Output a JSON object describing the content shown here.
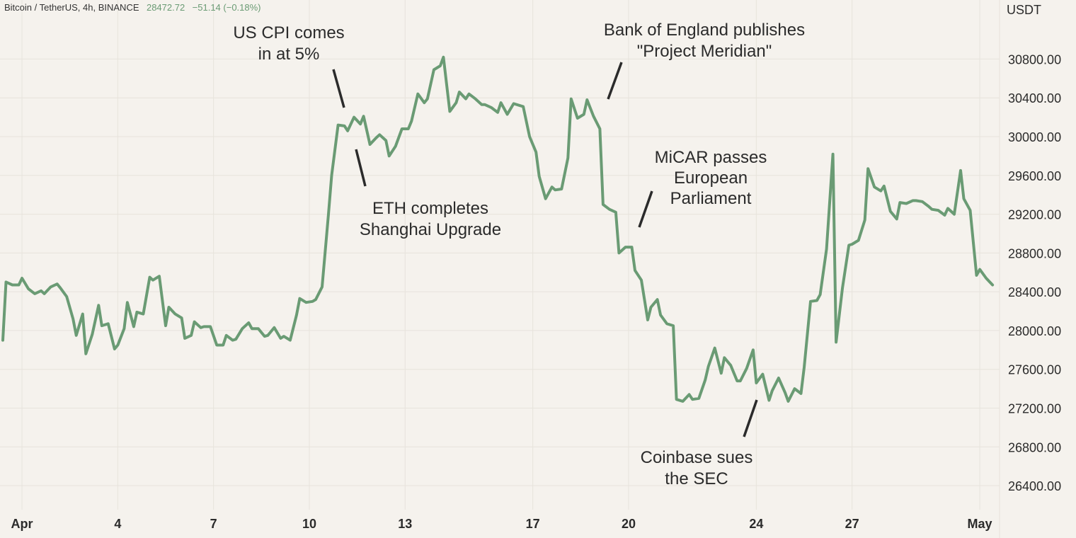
{
  "header": {
    "symbol": "Bitcoin / TetherUS, 4h, BINANCE",
    "price": "28472.72",
    "change": "−51.14 (−0.18%)"
  },
  "colors": {
    "background": "#f5f2ed",
    "line": "#6a9b74",
    "grid": "#e7e3dc",
    "text": "#2b2b2b",
    "header_change": "#6a9b74"
  },
  "chart_data": {
    "type": "line",
    "title": "Bitcoin / TetherUS, 4h, BINANCE",
    "ylabel": "USDT",
    "xlabel": "",
    "ylim": [
      26200,
      31300
    ],
    "xlim": [
      0,
      31.3
    ],
    "grid": true,
    "y_ticks": [
      26400,
      26800,
      27200,
      27600,
      28000,
      28400,
      28800,
      29200,
      29600,
      30000,
      30400,
      30800
    ],
    "y_tick_labels": [
      "26400.00",
      "26800.00",
      "27200.00",
      "27600.00",
      "28000.00",
      "28400.00",
      "28800.00",
      "29200.00",
      "29600.00",
      "30000.00",
      "30400.00",
      "30800.00"
    ],
    "x_ticks": [
      {
        "t": 0.6,
        "label": "Apr"
      },
      {
        "t": 3.6,
        "label": "4"
      },
      {
        "t": 6.6,
        "label": "7"
      },
      {
        "t": 9.6,
        "label": "10"
      },
      {
        "t": 12.6,
        "label": "13"
      },
      {
        "t": 16.6,
        "label": "17"
      },
      {
        "t": 19.6,
        "label": "20"
      },
      {
        "t": 23.6,
        "label": "24"
      },
      {
        "t": 26.6,
        "label": "27"
      },
      {
        "t": 30.6,
        "label": "May"
      }
    ],
    "series": [
      {
        "values": [
          [
            0.0,
            27900
          ],
          [
            0.1,
            28500
          ],
          [
            0.3,
            28470
          ],
          [
            0.5,
            28470
          ],
          [
            0.6,
            28540
          ],
          [
            0.8,
            28430
          ],
          [
            1.0,
            28380
          ],
          [
            1.2,
            28410
          ],
          [
            1.3,
            28380
          ],
          [
            1.5,
            28450
          ],
          [
            1.7,
            28480
          ],
          [
            1.8,
            28440
          ],
          [
            2.0,
            28350
          ],
          [
            2.2,
            28120
          ],
          [
            2.3,
            27950
          ],
          [
            2.5,
            28170
          ],
          [
            2.6,
            27760
          ],
          [
            2.8,
            27960
          ],
          [
            3.0,
            28260
          ],
          [
            3.1,
            28050
          ],
          [
            3.3,
            28070
          ],
          [
            3.5,
            27810
          ],
          [
            3.6,
            27850
          ],
          [
            3.8,
            28020
          ],
          [
            3.9,
            28290
          ],
          [
            4.1,
            28040
          ],
          [
            4.2,
            28190
          ],
          [
            4.4,
            28170
          ],
          [
            4.6,
            28550
          ],
          [
            4.7,
            28520
          ],
          [
            4.9,
            28560
          ],
          [
            5.1,
            28050
          ],
          [
            5.2,
            28240
          ],
          [
            5.4,
            28170
          ],
          [
            5.6,
            28130
          ],
          [
            5.7,
            27920
          ],
          [
            5.9,
            27950
          ],
          [
            6.0,
            28090
          ],
          [
            6.2,
            28030
          ],
          [
            6.3,
            28040
          ],
          [
            6.5,
            28040
          ],
          [
            6.7,
            27850
          ],
          [
            6.9,
            27850
          ],
          [
            7.0,
            27950
          ],
          [
            7.2,
            27900
          ],
          [
            7.3,
            27910
          ],
          [
            7.5,
            28020
          ],
          [
            7.7,
            28080
          ],
          [
            7.8,
            28020
          ],
          [
            8.0,
            28020
          ],
          [
            8.2,
            27940
          ],
          [
            8.3,
            27950
          ],
          [
            8.5,
            28030
          ],
          [
            8.7,
            27920
          ],
          [
            8.8,
            27940
          ],
          [
            9.0,
            27900
          ],
          [
            9.2,
            28160
          ],
          [
            9.3,
            28330
          ],
          [
            9.5,
            28290
          ],
          [
            9.7,
            28300
          ],
          [
            9.8,
            28320
          ],
          [
            10.0,
            28450
          ],
          [
            10.2,
            29200
          ],
          [
            10.3,
            29600
          ],
          [
            10.5,
            30120
          ],
          [
            10.7,
            30110
          ],
          [
            10.8,
            30060
          ],
          [
            11.0,
            30200
          ],
          [
            11.2,
            30130
          ],
          [
            11.3,
            30210
          ],
          [
            11.5,
            29920
          ],
          [
            11.7,
            29990
          ],
          [
            11.8,
            30020
          ],
          [
            12.0,
            29960
          ],
          [
            12.1,
            29800
          ],
          [
            12.3,
            29900
          ],
          [
            12.5,
            30080
          ],
          [
            12.7,
            30080
          ],
          [
            12.8,
            30160
          ],
          [
            13.0,
            30440
          ],
          [
            13.2,
            30350
          ],
          [
            13.3,
            30390
          ],
          [
            13.5,
            30690
          ],
          [
            13.7,
            30730
          ],
          [
            13.8,
            30820
          ],
          [
            14.0,
            30260
          ],
          [
            14.2,
            30350
          ],
          [
            14.3,
            30460
          ],
          [
            14.5,
            30390
          ],
          [
            14.6,
            30440
          ],
          [
            14.8,
            30390
          ],
          [
            15.0,
            30330
          ],
          [
            15.1,
            30330
          ],
          [
            15.3,
            30300
          ],
          [
            15.5,
            30250
          ],
          [
            15.6,
            30350
          ],
          [
            15.8,
            30230
          ],
          [
            16.0,
            30340
          ],
          [
            16.2,
            30320
          ],
          [
            16.3,
            30310
          ],
          [
            16.5,
            30000
          ],
          [
            16.7,
            29840
          ],
          [
            16.8,
            29590
          ],
          [
            17.0,
            29360
          ],
          [
            17.2,
            29480
          ],
          [
            17.3,
            29450
          ],
          [
            17.5,
            29460
          ],
          [
            17.7,
            29780
          ],
          [
            17.8,
            30390
          ],
          [
            18.0,
            30190
          ],
          [
            18.2,
            30230
          ],
          [
            18.3,
            30380
          ],
          [
            18.5,
            30210
          ],
          [
            18.7,
            30080
          ],
          [
            18.8,
            29300
          ],
          [
            19.0,
            29250
          ],
          [
            19.2,
            29220
          ],
          [
            19.3,
            28800
          ],
          [
            19.5,
            28860
          ],
          [
            19.7,
            28860
          ],
          [
            19.8,
            28620
          ],
          [
            20.0,
            28520
          ],
          [
            20.2,
            28110
          ],
          [
            20.3,
            28240
          ],
          [
            20.5,
            28320
          ],
          [
            20.6,
            28160
          ],
          [
            20.8,
            28070
          ],
          [
            21.0,
            28050
          ],
          [
            21.1,
            27290
          ],
          [
            21.3,
            27270
          ],
          [
            21.5,
            27340
          ],
          [
            21.6,
            27290
          ],
          [
            21.8,
            27300
          ],
          [
            22.0,
            27490
          ],
          [
            22.1,
            27630
          ],
          [
            22.3,
            27820
          ],
          [
            22.5,
            27560
          ],
          [
            22.6,
            27720
          ],
          [
            22.8,
            27640
          ],
          [
            23.0,
            27480
          ],
          [
            23.1,
            27480
          ],
          [
            23.3,
            27610
          ],
          [
            23.5,
            27800
          ],
          [
            23.6,
            27460
          ],
          [
            23.8,
            27550
          ],
          [
            24.0,
            27280
          ],
          [
            24.1,
            27380
          ],
          [
            24.3,
            27510
          ],
          [
            24.5,
            27360
          ],
          [
            24.6,
            27270
          ],
          [
            24.8,
            27400
          ],
          [
            25.0,
            27350
          ],
          [
            25.1,
            27620
          ],
          [
            25.3,
            28300
          ],
          [
            25.5,
            28310
          ],
          [
            25.6,
            28370
          ],
          [
            25.8,
            28840
          ],
          [
            26.0,
            29820
          ],
          [
            26.1,
            27880
          ],
          [
            26.3,
            28440
          ],
          [
            26.5,
            28880
          ],
          [
            26.6,
            28890
          ],
          [
            26.8,
            28930
          ],
          [
            27.0,
            29140
          ],
          [
            27.1,
            29670
          ],
          [
            27.3,
            29480
          ],
          [
            27.5,
            29440
          ],
          [
            27.6,
            29490
          ],
          [
            27.8,
            29230
          ],
          [
            28.0,
            29150
          ],
          [
            28.1,
            29320
          ],
          [
            28.3,
            29310
          ],
          [
            28.5,
            29340
          ],
          [
            28.6,
            29340
          ],
          [
            28.8,
            29330
          ],
          [
            29.0,
            29280
          ],
          [
            29.1,
            29250
          ],
          [
            29.3,
            29240
          ],
          [
            29.5,
            29190
          ],
          [
            29.6,
            29260
          ],
          [
            29.8,
            29200
          ],
          [
            30.0,
            29650
          ],
          [
            30.1,
            29360
          ],
          [
            30.3,
            29240
          ],
          [
            30.5,
            28570
          ],
          [
            30.6,
            28630
          ],
          [
            30.8,
            28540
          ],
          [
            31.0,
            28470
          ]
        ]
      }
    ],
    "annotations": [
      {
        "id": "us-cpi",
        "lines": [
          "US CPI comes",
          "in at 5%"
        ]
      },
      {
        "id": "eth-shanghai",
        "lines": [
          "ETH completes",
          "Shanghai Upgrade"
        ]
      },
      {
        "id": "boe-meridian",
        "lines": [
          "Bank of England publishes",
          "\"Project Meridian\""
        ]
      },
      {
        "id": "micar",
        "lines": [
          "MiCAR passes",
          "European",
          "Parliament"
        ]
      },
      {
        "id": "coinbase-sec",
        "lines": [
          "Coinbase sues",
          "the SEC"
        ]
      }
    ]
  }
}
